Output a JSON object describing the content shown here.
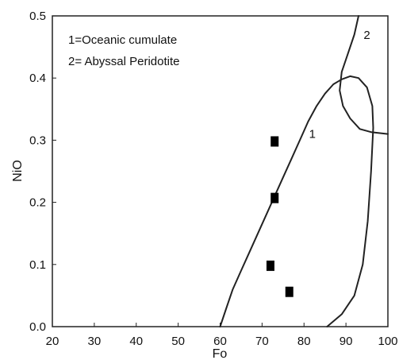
{
  "chart_data": {
    "type": "scatter",
    "xlabel": "Fo",
    "ylabel": "NiO",
    "xlim": [
      20,
      100
    ],
    "ylim": [
      0,
      0.5
    ],
    "x_ticks": [
      "20",
      "30",
      "40",
      "50",
      "60",
      "70",
      "80",
      "90",
      "100"
    ],
    "y_ticks": [
      "0.0",
      "0.1",
      "0.2",
      "0.3",
      "0.4",
      "0.5"
    ],
    "legend": [
      "1=Oceanic cumulate",
      "2= Abyssal Peridotite"
    ],
    "legend_position": "top-left",
    "grid": false,
    "series": [
      {
        "marker": "square",
        "color": "#000000",
        "points": [
          {
            "x": 73,
            "y": 0.298
          },
          {
            "x": 73,
            "y": 0.207
          },
          {
            "x": 72,
            "y": 0.098
          },
          {
            "x": 76.5,
            "y": 0.056
          }
        ]
      }
    ],
    "fields": [
      {
        "label": "1",
        "label_at": {
          "x": 82,
          "y": 0.304
        },
        "boundary": [
          [
            60,
            0.0
          ],
          [
            61.5,
            0.03
          ],
          [
            63,
            0.06
          ],
          [
            65,
            0.09
          ],
          [
            67,
            0.12
          ],
          [
            69,
            0.15
          ],
          [
            71,
            0.18
          ],
          [
            73,
            0.21
          ],
          [
            75,
            0.24
          ],
          [
            77,
            0.27
          ],
          [
            79,
            0.3
          ],
          [
            81,
            0.33
          ],
          [
            83,
            0.355
          ],
          [
            85,
            0.375
          ],
          [
            87,
            0.39
          ],
          [
            89,
            0.398
          ],
          [
            91,
            0.403
          ],
          [
            93,
            0.4
          ],
          [
            95,
            0.385
          ],
          [
            96.3,
            0.355
          ],
          [
            96.5,
            0.32
          ],
          [
            96,
            0.25
          ],
          [
            95.2,
            0.17
          ],
          [
            94,
            0.1
          ],
          [
            92,
            0.05
          ],
          [
            89,
            0.02
          ],
          [
            85.5,
            0.0
          ]
        ]
      },
      {
        "label": "2",
        "label_at": {
          "x": 95,
          "y": 0.463
        },
        "boundary": [
          [
            93,
            0.5
          ],
          [
            92,
            0.47
          ],
          [
            90.5,
            0.44
          ],
          [
            89,
            0.41
          ],
          [
            88.5,
            0.38
          ],
          [
            89.3,
            0.355
          ],
          [
            91,
            0.335
          ],
          [
            93.3,
            0.318
          ],
          [
            96,
            0.313
          ],
          [
            100,
            0.31
          ]
        ]
      }
    ]
  }
}
